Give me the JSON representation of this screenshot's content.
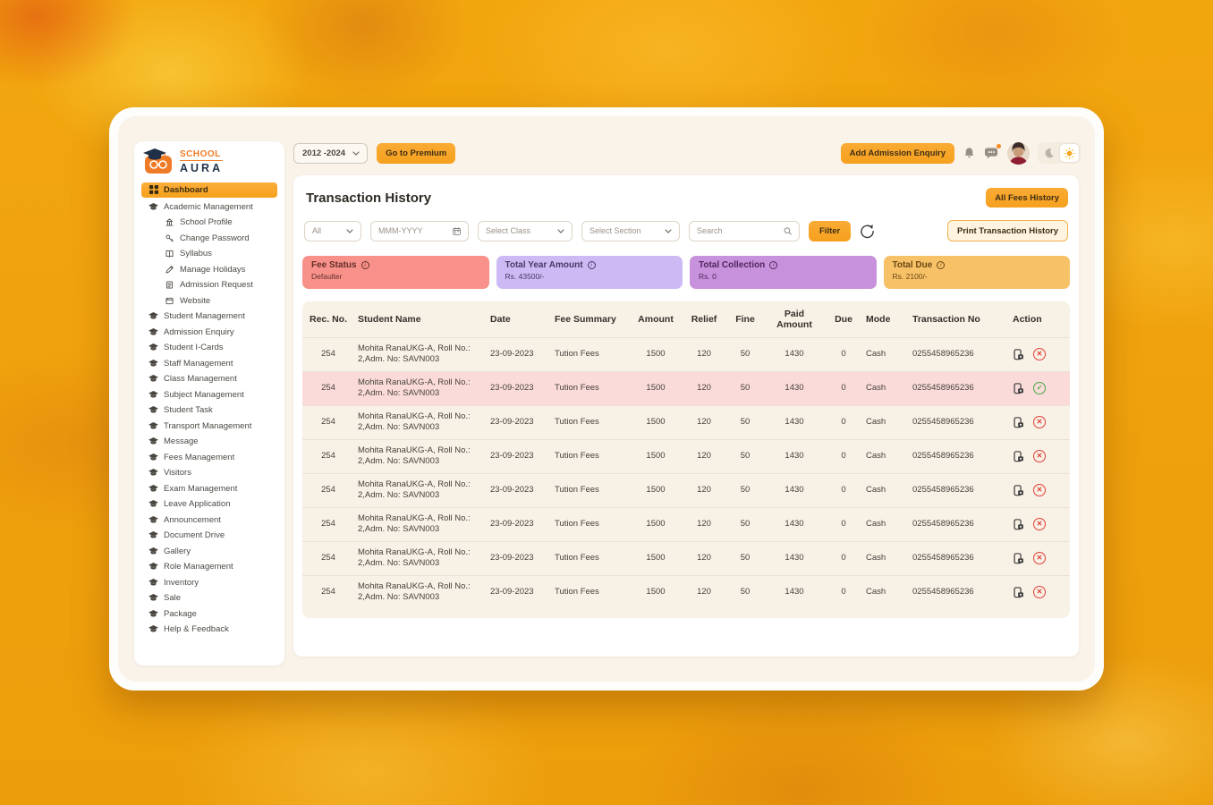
{
  "logo": {
    "line1": "SCHOOL",
    "line2": "AURA"
  },
  "topbar": {
    "session_select": "2012 -2024",
    "premium_button": "Go to Premium",
    "add_admission_button": "Add Admission Enquiry",
    "theme": {
      "active": "light"
    }
  },
  "sidebar": {
    "items": [
      {
        "label": "Dashboard",
        "type": "dashboard",
        "icon": "dashboard",
        "active": true
      },
      {
        "label": "Academic Management",
        "type": "main",
        "icon": "graduation-cap"
      },
      {
        "label": "School Profile",
        "type": "sub",
        "icon": "building"
      },
      {
        "label": "Change Password",
        "type": "sub",
        "icon": "key"
      },
      {
        "label": "Syllabus",
        "type": "sub",
        "icon": "book"
      },
      {
        "label": "Manage Holidays",
        "type": "sub",
        "icon": "pencil"
      },
      {
        "label": "Admission Request",
        "type": "sub",
        "icon": "form"
      },
      {
        "label": "Website",
        "type": "sub",
        "icon": "website"
      },
      {
        "label": "Student Management",
        "type": "main",
        "icon": "graduation-cap"
      },
      {
        "label": "Admission Enquiry",
        "type": "main",
        "icon": "graduation-cap"
      },
      {
        "label": "Student I-Cards",
        "type": "main",
        "icon": "graduation-cap"
      },
      {
        "label": "Staff Management",
        "type": "main",
        "icon": "graduation-cap"
      },
      {
        "label": "Class Management",
        "type": "main",
        "icon": "graduation-cap"
      },
      {
        "label": "Subject Management",
        "type": "main",
        "icon": "graduation-cap"
      },
      {
        "label": "Student Task",
        "type": "main",
        "icon": "graduation-cap"
      },
      {
        "label": "Transport Management",
        "type": "main",
        "icon": "graduation-cap"
      },
      {
        "label": "Message",
        "type": "main",
        "icon": "graduation-cap"
      },
      {
        "label": "Fees Management",
        "type": "main",
        "icon": "graduation-cap"
      },
      {
        "label": "Visitors",
        "type": "main",
        "icon": "graduation-cap"
      },
      {
        "label": "Exam Management",
        "type": "main",
        "icon": "graduation-cap"
      },
      {
        "label": "Leave Application",
        "type": "main",
        "icon": "graduation-cap"
      },
      {
        "label": "Announcement",
        "type": "main",
        "icon": "graduation-cap"
      },
      {
        "label": "Document Drive",
        "type": "main",
        "icon": "graduation-cap"
      },
      {
        "label": "Gallery",
        "type": "main",
        "icon": "graduation-cap"
      },
      {
        "label": "Role Management",
        "type": "main",
        "icon": "graduation-cap"
      },
      {
        "label": "Inventory",
        "type": "main",
        "icon": "graduation-cap"
      },
      {
        "label": "Sale",
        "type": "main",
        "icon": "graduation-cap"
      },
      {
        "label": "Package",
        "type": "main",
        "icon": "graduation-cap"
      },
      {
        "label": "Help & Feedback",
        "type": "main",
        "icon": "graduation-cap"
      }
    ]
  },
  "main": {
    "title": "Transaction History",
    "all_fees_button": "All Fees History",
    "filters": {
      "all_select": "All",
      "month_placeholder": "MMM-YYYY",
      "class_select": "Select Class",
      "section_select": "Select Section",
      "search_placeholder": "Search",
      "filter_button": "Filter",
      "print_button": "Print Transaction History"
    },
    "stat_cards": [
      {
        "title": "Fee Status",
        "value": "Defaulter",
        "bg": "#F8918A",
        "fg": "#63302A"
      },
      {
        "title": "Total Year Amount",
        "value": "Rs. 43500/-",
        "bg": "#CDBAF4",
        "fg": "#463866"
      },
      {
        "title": "Total Collection",
        "value": "Rs. 0",
        "bg": "#C891DB",
        "fg": "#50265C"
      },
      {
        "title": "Total Due",
        "value": "Rs. 2100/-",
        "bg": "#F7C168",
        "fg": "#6A4712"
      }
    ],
    "table": {
      "columns": [
        "Rec. No.",
        "Student Name",
        "Date",
        "Fee Summary",
        "Amount",
        "Relief",
        "Fine",
        "Paid Amount",
        "Due",
        "Mode",
        "Transaction No",
        "Action"
      ],
      "rows": [
        {
          "rec_no": "254",
          "student": "Mohita RanaUKG-A, Roll No.: 2,Adm. No: SAVN003",
          "date": "23-09-2023",
          "fee_summary": "Tution Fees",
          "amount": "1500",
          "relief": "120",
          "fine": "50",
          "paid": "1430",
          "due": "0",
          "mode": "Cash",
          "txn": "0255458965236",
          "status": "failed",
          "highlight": false
        },
        {
          "rec_no": "254",
          "student": "Mohita RanaUKG-A, Roll No.: 2,Adm. No: SAVN003",
          "date": "23-09-2023",
          "fee_summary": "Tution Fees",
          "amount": "1500",
          "relief": "120",
          "fine": "50",
          "paid": "1430",
          "due": "0",
          "mode": "Cash",
          "txn": "0255458965236",
          "status": "success",
          "highlight": true
        },
        {
          "rec_no": "254",
          "student": "Mohita RanaUKG-A, Roll No.: 2,Adm. No: SAVN003",
          "date": "23-09-2023",
          "fee_summary": "Tution Fees",
          "amount": "1500",
          "relief": "120",
          "fine": "50",
          "paid": "1430",
          "due": "0",
          "mode": "Cash",
          "txn": "0255458965236",
          "status": "failed",
          "highlight": false
        },
        {
          "rec_no": "254",
          "student": "Mohita RanaUKG-A, Roll No.: 2,Adm. No: SAVN003",
          "date": "23-09-2023",
          "fee_summary": "Tution Fees",
          "amount": "1500",
          "relief": "120",
          "fine": "50",
          "paid": "1430",
          "due": "0",
          "mode": "Cash",
          "txn": "0255458965236",
          "status": "failed",
          "highlight": false
        },
        {
          "rec_no": "254",
          "student": "Mohita RanaUKG-A, Roll No.: 2,Adm. No: SAVN003",
          "date": "23-09-2023",
          "fee_summary": "Tution Fees",
          "amount": "1500",
          "relief": "120",
          "fine": "50",
          "paid": "1430",
          "due": "0",
          "mode": "Cash",
          "txn": "0255458965236",
          "status": "failed",
          "highlight": false
        },
        {
          "rec_no": "254",
          "student": "Mohita RanaUKG-A, Roll No.: 2,Adm. No: SAVN003",
          "date": "23-09-2023",
          "fee_summary": "Tution Fees",
          "amount": "1500",
          "relief": "120",
          "fine": "50",
          "paid": "1430",
          "due": "0",
          "mode": "Cash",
          "txn": "0255458965236",
          "status": "failed",
          "highlight": false
        },
        {
          "rec_no": "254",
          "student": "Mohita RanaUKG-A, Roll No.: 2,Adm. No: SAVN003",
          "date": "23-09-2023",
          "fee_summary": "Tution Fees",
          "amount": "1500",
          "relief": "120",
          "fine": "50",
          "paid": "1430",
          "due": "0",
          "mode": "Cash",
          "txn": "0255458965236",
          "status": "failed",
          "highlight": false
        },
        {
          "rec_no": "254",
          "student": "Mohita RanaUKG-A, Roll No.: 2,Adm. No: SAVN003",
          "date": "23-09-2023",
          "fee_summary": "Tution Fees",
          "amount": "1500",
          "relief": "120",
          "fine": "50",
          "paid": "1430",
          "due": "0",
          "mode": "Cash",
          "txn": "0255458965236",
          "status": "failed",
          "highlight": false
        }
      ]
    }
  },
  "colors": {
    "accent_orange": "#F6A01E",
    "cream_bg": "#FAF3E9",
    "table_bg": "#F8F1E6",
    "highlight_row": "#FBDBD9",
    "status_failed": "#E04038",
    "status_success": "#3FA947"
  }
}
